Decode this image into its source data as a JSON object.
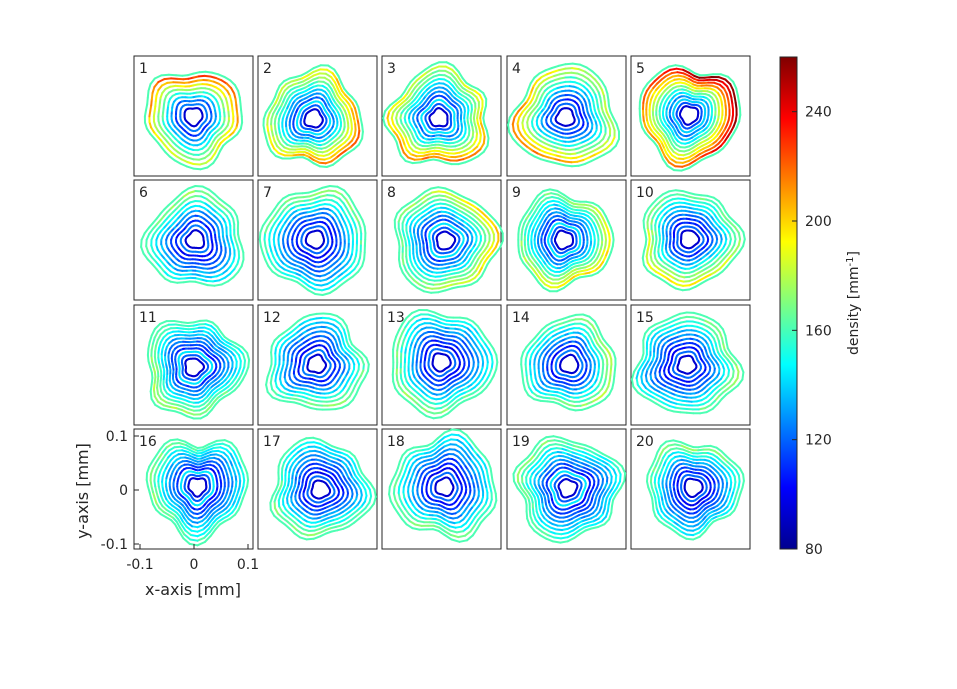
{
  "chart_data": {
    "type": "contour-grid",
    "panels": [
      {
        "label": "1"
      },
      {
        "label": "2"
      },
      {
        "label": "3"
      },
      {
        "label": "4"
      },
      {
        "label": "5"
      },
      {
        "label": "6"
      },
      {
        "label": "7"
      },
      {
        "label": "8"
      },
      {
        "label": "9"
      },
      {
        "label": "10"
      },
      {
        "label": "11"
      },
      {
        "label": "12"
      },
      {
        "label": "13"
      },
      {
        "label": "14"
      },
      {
        "label": "15"
      },
      {
        "label": "16"
      },
      {
        "label": "17"
      },
      {
        "label": "18"
      },
      {
        "label": "19"
      },
      {
        "label": "20"
      }
    ],
    "xlabel": "x-axis [mm]",
    "ylabel": "y-axis [mm]",
    "x_ticks": [
      "-0.1",
      "0",
      "0.1"
    ],
    "y_ticks": [
      "0.1",
      "0",
      "-0.1"
    ],
    "xlim": [
      -0.1,
      0.1
    ],
    "ylim": [
      -0.1,
      0.1
    ],
    "colorbar": {
      "label_main": "density [mm",
      "label_sup": "-1",
      "label_end": "]",
      "ticks": [
        "80",
        "120",
        "160",
        "200",
        "240"
      ],
      "tick_values": [
        80,
        120,
        160,
        200,
        240
      ],
      "range": [
        80,
        260
      ],
      "colormap": "jet"
    }
  }
}
